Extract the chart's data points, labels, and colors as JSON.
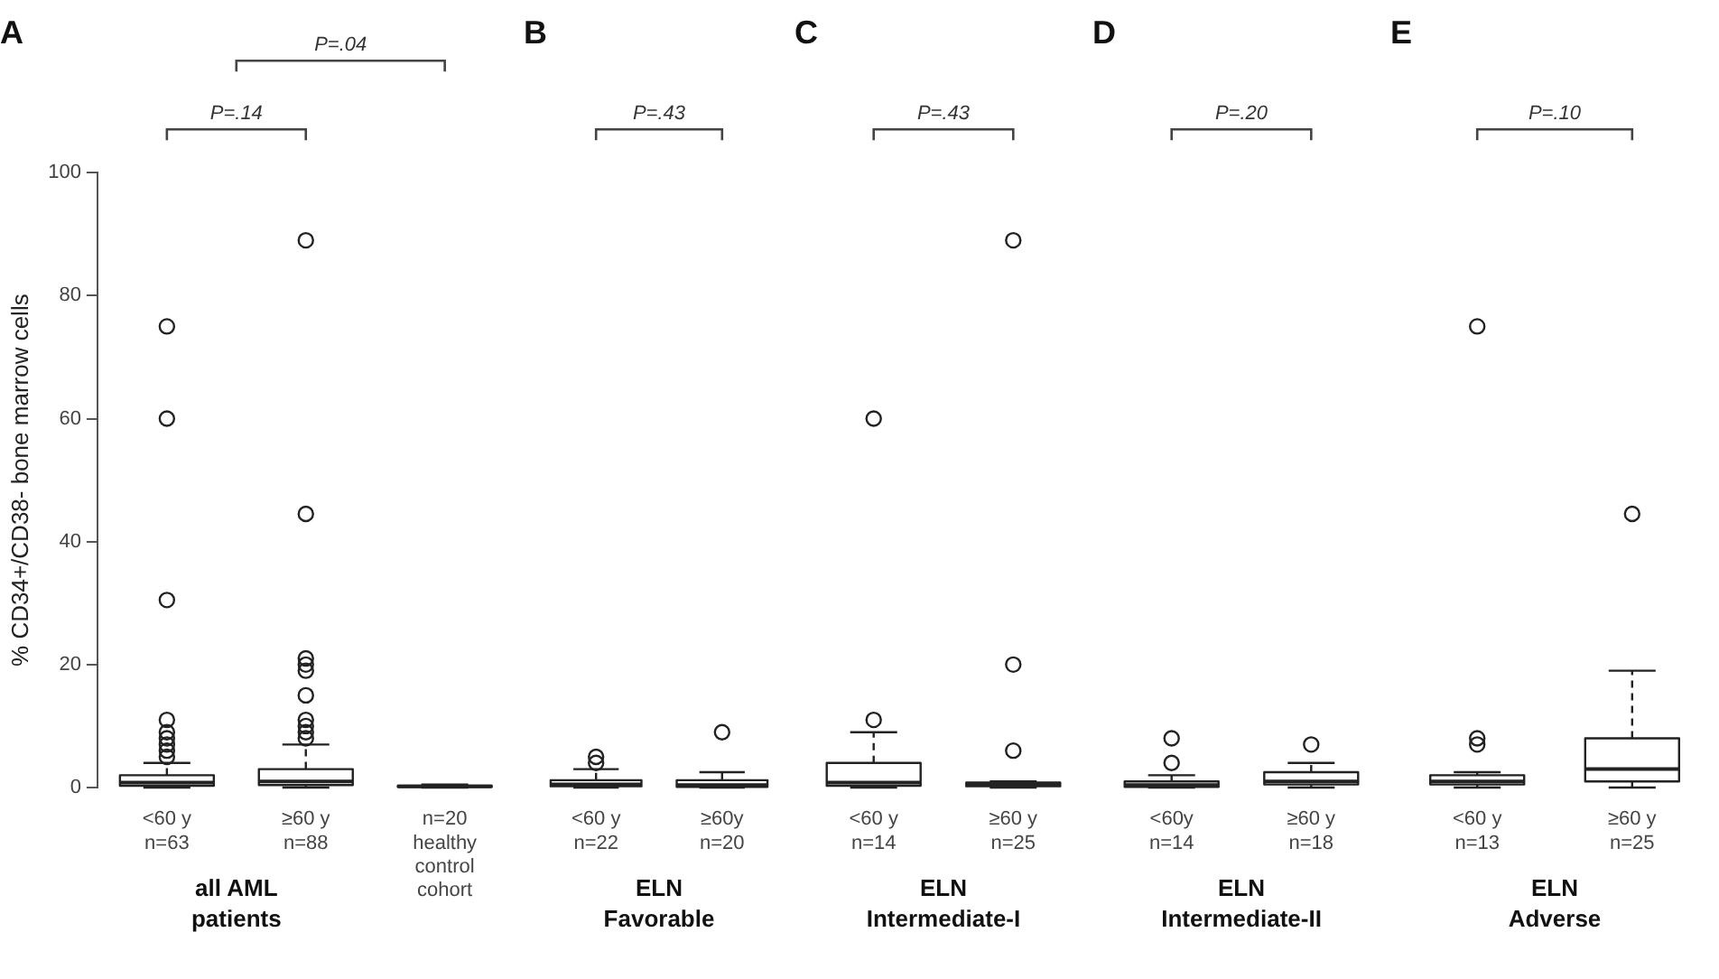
{
  "chart_data": [
    {
      "type": "box",
      "title": "A",
      "ylabel": "% CD34+/CD38- bone marrow cells",
      "categories": [
        "<60 y\nn=63",
        "≥60 y\nn=88",
        "n=20\nhealthy\ncontrol\ncohort"
      ],
      "xlabel": "all AML patients",
      "color": "#222222",
      "marker": "circle",
      "line_style": "dashed",
      "ylim": [
        0,
        100
      ],
      "yticks": [
        0,
        20,
        40,
        60,
        80,
        100
      ],
      "annotations": [
        "P=.14",
        "P=.04"
      ],
      "boxes": [
        {
          "low": 0,
          "q1": 0.3,
          "median": 0.8,
          "q3": 2,
          "high": 4,
          "outliers": [
            5,
            6,
            7,
            8,
            9,
            11,
            30.5,
            60,
            75
          ]
        },
        {
          "low": 0,
          "q1": 0.4,
          "median": 1,
          "q3": 3,
          "high": 7,
          "outliers": [
            8,
            9,
            10,
            11,
            15,
            19,
            20,
            21,
            44.5,
            89
          ]
        },
        {
          "low": 0,
          "q1": 0.1,
          "median": 0.2,
          "q3": 0.3,
          "high": 0.5
        }
      ]
    },
    {
      "type": "box",
      "title": "B",
      "categories": [
        "<60 y\nn=22",
        "≥60y\nn=20"
      ],
      "xlabel": "ELN Favorable",
      "color": "#222222",
      "marker": "circle",
      "line_style": "dashed",
      "ylim": [
        0,
        100
      ],
      "tick_labels": "x",
      "annotations": [
        "P=.43"
      ],
      "boxes": [
        {
          "low": 0,
          "q1": 0.2,
          "median": 0.5,
          "q3": 1.2,
          "high": 3,
          "outliers": [
            4,
            5
          ]
        },
        {
          "low": 0,
          "q1": 0.1,
          "median": 0.4,
          "q3": 1.2,
          "high": 2.5,
          "outliers": [
            9
          ]
        }
      ]
    },
    {
      "type": "box",
      "title": "C",
      "categories": [
        "<60 y\nn=14",
        "≥60 y\nn=25"
      ],
      "xlabel": "ELN Intermediate-I",
      "color": "#222222",
      "marker": "circle",
      "line_style": "dashed",
      "ylim": [
        0,
        100
      ],
      "tick_labels": "x",
      "annotations": [
        "P=.43"
      ],
      "boxes": [
        {
          "low": 0,
          "q1": 0.3,
          "median": 0.8,
          "q3": 4,
          "high": 9,
          "outliers": [
            11,
            60
          ]
        },
        {
          "low": 0,
          "q1": 0.2,
          "median": 0.5,
          "q3": 0.8,
          "high": 1,
          "outliers": [
            6,
            20,
            89
          ]
        }
      ]
    },
    {
      "type": "box",
      "title": "D",
      "categories": [
        "<60y\nn=14",
        "≥60 y\nn=18"
      ],
      "xlabel": "ELN Intermediate-II",
      "color": "#222222",
      "marker": "circle",
      "line_style": "dashed",
      "ylim": [
        0,
        100
      ],
      "tick_labels": "x",
      "annotations": [
        "P=.20"
      ],
      "boxes": [
        {
          "low": 0,
          "q1": 0.1,
          "median": 0.4,
          "q3": 1,
          "high": 2,
          "outliers": [
            4,
            8
          ]
        },
        {
          "low": 0,
          "q1": 0.5,
          "median": 1,
          "q3": 2.5,
          "high": 4,
          "outliers": [
            7
          ]
        }
      ]
    },
    {
      "type": "box",
      "title": "E",
      "categories": [
        "<60 y\nn=13",
        "≥60 y\nn=25"
      ],
      "xlabel": "ELN Adverse",
      "color": "#222222",
      "marker": "circle",
      "line_style": "dashed",
      "ylim": [
        0,
        100
      ],
      "tick_labels": "x",
      "annotations": [
        "P=.10"
      ],
      "boxes": [
        {
          "low": 0,
          "q1": 0.5,
          "median": 1,
          "q3": 2,
          "high": 2.5,
          "outliers": [
            7,
            8,
            75
          ]
        },
        {
          "low": 0,
          "q1": 1,
          "median": 3,
          "q3": 8,
          "high": 19,
          "outliers": [
            44.5
          ]
        }
      ]
    }
  ]
}
